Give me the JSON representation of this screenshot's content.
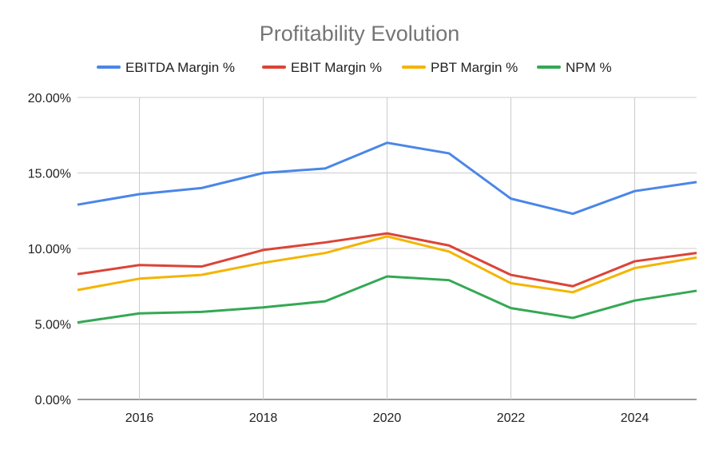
{
  "chart_data": {
    "type": "line",
    "title": "Profitability Evolution",
    "xlabel": "",
    "ylabel": "",
    "x": [
      2015,
      2016,
      2017,
      2018,
      2019,
      2020,
      2021,
      2022,
      2023,
      2024,
      2025
    ],
    "xlim": [
      2015,
      2025
    ],
    "ylim": [
      0,
      20
    ],
    "x_ticks": [
      "2016",
      "2018",
      "2020",
      "2022",
      "2024"
    ],
    "y_ticks": [
      "0.00%",
      "5.00%",
      "10.00%",
      "15.00%",
      "20.00%"
    ],
    "grid": true,
    "legend_position": "top",
    "series": [
      {
        "name": "EBITDA  Margin %",
        "color": "#4a86e8",
        "values": [
          12.9,
          13.6,
          14.0,
          15.0,
          15.3,
          17.0,
          16.3,
          13.3,
          12.3,
          13.8,
          14.4
        ]
      },
      {
        "name": "EBIT Margin %",
        "color": "#db4437",
        "values": [
          8.3,
          8.9,
          8.8,
          9.9,
          10.4,
          11.0,
          10.2,
          8.25,
          7.5,
          9.15,
          9.7
        ]
      },
      {
        "name": "PBT  Margin %",
        "color": "#f4b400",
        "values": [
          7.25,
          8.0,
          8.25,
          9.05,
          9.7,
          10.8,
          9.8,
          7.7,
          7.1,
          8.7,
          9.4
        ]
      },
      {
        "name": "NPM  %",
        "color": "#34a853",
        "values": [
          5.1,
          5.7,
          5.8,
          6.1,
          6.5,
          8.15,
          7.9,
          6.05,
          5.4,
          6.55,
          7.2
        ]
      }
    ]
  }
}
